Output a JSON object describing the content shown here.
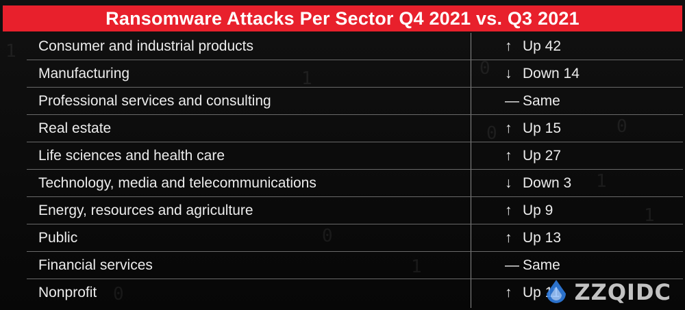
{
  "title": "Ransomware Attacks Per Sector Q4 2021 vs. Q3 2021",
  "watermark": "ZZQIDC",
  "colors": {
    "title_bar": "#e8202c",
    "background": "#0a0a0a",
    "text": "#ececec"
  },
  "chart_data": {
    "type": "table",
    "title": "Ransomware Attacks Per Sector Q4 2021 vs. Q3 2021",
    "rows": [
      {
        "sector": "Consumer and industrial products",
        "direction": "up",
        "arrow": "↑",
        "change": "Up 42",
        "value": 42
      },
      {
        "sector": "Manufacturing",
        "direction": "down",
        "arrow": "↓",
        "change": "Down 14",
        "value": -14
      },
      {
        "sector": "Professional services and consulting",
        "direction": "same",
        "arrow": "—",
        "change": "Same",
        "value": 0
      },
      {
        "sector": "Real estate",
        "direction": "up",
        "arrow": "↑",
        "change": "Up 15",
        "value": 15
      },
      {
        "sector": "Life sciences and health care",
        "direction": "up",
        "arrow": "↑",
        "change": "Up 27",
        "value": 27
      },
      {
        "sector": "Technology, media and telecommunications",
        "direction": "down",
        "arrow": "↓",
        "change": "Down 3",
        "value": -3
      },
      {
        "sector": "Energy, resources and agriculture",
        "direction": "up",
        "arrow": "↑",
        "change": "Up 9",
        "value": 9
      },
      {
        "sector": "Public",
        "direction": "up",
        "arrow": "↑",
        "change": "Up 13",
        "value": 13
      },
      {
        "sector": "Financial services",
        "direction": "same",
        "arrow": "—",
        "change": "Same",
        "value": 0
      },
      {
        "sector": "Nonprofit",
        "direction": "up",
        "arrow": "↑",
        "change": "Up 11",
        "value": 11
      }
    ]
  }
}
